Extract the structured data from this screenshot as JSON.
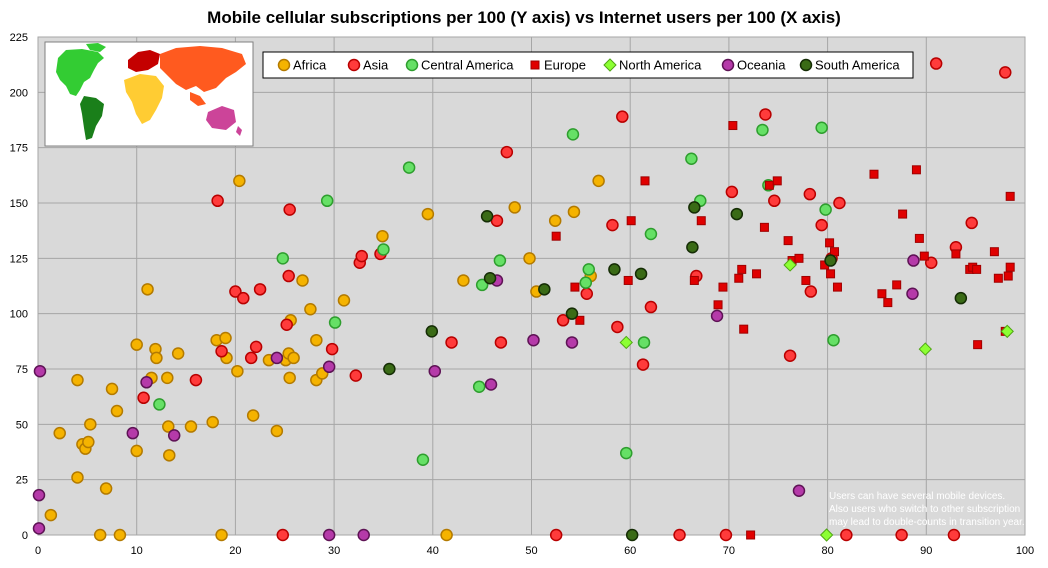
{
  "chart_data": {
    "type": "scatter",
    "title": "Mobile cellular subscriptions per 100 (Y axis) vs Internet users per 100 (X axis)",
    "xlabel": "",
    "ylabel": "",
    "xlim": [
      0,
      100
    ],
    "ylim": [
      0,
      225
    ],
    "x_ticks": [
      0,
      10,
      20,
      30,
      40,
      50,
      60,
      70,
      80,
      90,
      100
    ],
    "y_ticks": [
      0,
      25,
      50,
      75,
      100,
      125,
      150,
      175,
      200,
      225
    ],
    "grid": true,
    "legend_placement": "top",
    "note": [
      "Users can have several mobile devices.",
      "Also users who switch to other subscription",
      "may lead to double-counts in transition year."
    ],
    "series": [
      {
        "name": "Africa",
        "marker": "circle",
        "color": "#f5b300",
        "edge": "#b37a00",
        "points": [
          [
            1.3,
            9
          ],
          [
            2.2,
            46
          ],
          [
            4,
            26
          ],
          [
            4,
            70
          ],
          [
            4.5,
            41
          ],
          [
            4.8,
            39
          ],
          [
            5.1,
            42
          ],
          [
            5.3,
            50
          ],
          [
            6.3,
            0
          ],
          [
            6.9,
            21
          ],
          [
            7.5,
            66
          ],
          [
            8,
            56
          ],
          [
            8.3,
            0
          ],
          [
            10,
            38
          ],
          [
            10,
            86
          ],
          [
            11.1,
            111
          ],
          [
            11.5,
            71
          ],
          [
            11.9,
            84
          ],
          [
            12,
            80
          ],
          [
            13.1,
            71
          ],
          [
            13.2,
            49
          ],
          [
            13.3,
            36
          ],
          [
            14.2,
            82
          ],
          [
            15.5,
            49
          ],
          [
            17.7,
            51
          ],
          [
            18.1,
            88
          ],
          [
            18.6,
            0
          ],
          [
            19,
            89
          ],
          [
            19.1,
            80
          ],
          [
            20.2,
            74
          ],
          [
            20.4,
            160
          ],
          [
            21.8,
            54
          ],
          [
            23.4,
            79
          ],
          [
            24.2,
            47
          ],
          [
            25.1,
            79
          ],
          [
            25.4,
            82
          ],
          [
            25.5,
            71
          ],
          [
            25.6,
            97
          ],
          [
            25.9,
            80
          ],
          [
            26.8,
            115
          ],
          [
            27.6,
            102
          ],
          [
            28.2,
            88
          ],
          [
            28.2,
            70
          ],
          [
            28.8,
            73
          ],
          [
            31,
            106
          ],
          [
            34.9,
            135
          ],
          [
            39.5,
            145
          ],
          [
            41.4,
            0
          ],
          [
            43.1,
            115
          ],
          [
            48.3,
            148
          ],
          [
            49.8,
            125
          ],
          [
            50.5,
            110
          ],
          [
            52.4,
            142
          ],
          [
            54.3,
            146
          ],
          [
            56,
            117
          ],
          [
            56.8,
            160
          ]
        ]
      },
      {
        "name": "Asia",
        "marker": "circle",
        "color": "#ff3b3b",
        "edge": "#b80000",
        "points": [
          [
            10.7,
            62
          ],
          [
            16,
            70
          ],
          [
            18.2,
            151
          ],
          [
            18.6,
            83
          ],
          [
            20,
            110
          ],
          [
            20.8,
            107
          ],
          [
            21.6,
            80
          ],
          [
            22.1,
            85
          ],
          [
            22.5,
            111
          ],
          [
            24.8,
            0
          ],
          [
            25.2,
            95
          ],
          [
            25.4,
            117
          ],
          [
            25.5,
            147
          ],
          [
            29.8,
            84
          ],
          [
            32.2,
            72
          ],
          [
            32.6,
            123
          ],
          [
            32.8,
            126
          ],
          [
            34.7,
            127
          ],
          [
            41.9,
            87
          ],
          [
            46.5,
            142
          ],
          [
            46.9,
            87
          ],
          [
            47.5,
            173
          ],
          [
            52.5,
            0
          ],
          [
            53.2,
            97
          ],
          [
            55.6,
            109
          ],
          [
            58.2,
            140
          ],
          [
            58.7,
            94
          ],
          [
            59.2,
            189
          ],
          [
            61.3,
            77
          ],
          [
            62.1,
            103
          ],
          [
            65,
            0
          ],
          [
            66.7,
            117
          ],
          [
            69.7,
            0
          ],
          [
            70.3,
            155
          ],
          [
            73.7,
            190
          ],
          [
            74.6,
            151
          ],
          [
            76.2,
            81
          ],
          [
            78.2,
            154
          ],
          [
            78.3,
            110
          ],
          [
            79.4,
            140
          ],
          [
            80.4,
            125
          ],
          [
            81.2,
            150
          ],
          [
            81.9,
            0
          ],
          [
            87.5,
            0
          ],
          [
            90.5,
            123
          ],
          [
            91,
            213
          ],
          [
            92.8,
            0
          ],
          [
            93,
            130
          ],
          [
            94.6,
            141
          ],
          [
            98,
            209
          ]
        ]
      },
      {
        "name": "Central America",
        "marker": "circle",
        "color": "#66e066",
        "edge": "#2e9e2e",
        "points": [
          [
            12.3,
            59
          ],
          [
            24.8,
            125
          ],
          [
            29.3,
            151
          ],
          [
            30.1,
            96
          ],
          [
            35,
            129
          ],
          [
            37.6,
            166
          ],
          [
            39,
            34
          ],
          [
            44.7,
            67
          ],
          [
            45,
            113
          ],
          [
            46.8,
            124
          ],
          [
            54.2,
            181
          ],
          [
            55.5,
            114
          ],
          [
            55.8,
            120
          ],
          [
            59.6,
            37
          ],
          [
            61.4,
            87
          ],
          [
            62.1,
            136
          ],
          [
            66.2,
            170
          ],
          [
            67.1,
            151
          ],
          [
            73.4,
            183
          ],
          [
            74,
            158
          ],
          [
            79.4,
            184
          ],
          [
            79.8,
            147
          ],
          [
            80.6,
            88
          ]
        ]
      },
      {
        "name": "Europe",
        "marker": "square",
        "color": "#e00000",
        "edge": "#a00000",
        "points": [
          [
            52.5,
            135
          ],
          [
            54.4,
            112
          ],
          [
            54.9,
            97
          ],
          [
            59.8,
            115
          ],
          [
            60.1,
            142
          ],
          [
            61.5,
            160
          ],
          [
            66.5,
            115
          ],
          [
            67.2,
            142
          ],
          [
            68.9,
            104
          ],
          [
            69.4,
            112
          ],
          [
            70.4,
            185
          ],
          [
            71,
            116
          ],
          [
            71.3,
            120
          ],
          [
            71.5,
            93
          ],
          [
            72.2,
            0
          ],
          [
            72.8,
            118
          ],
          [
            73.6,
            139
          ],
          [
            74.1,
            158
          ],
          [
            74.9,
            160
          ],
          [
            76,
            133
          ],
          [
            76.4,
            124
          ],
          [
            77.1,
            125
          ],
          [
            77.8,
            115
          ],
          [
            79.7,
            122
          ],
          [
            80.2,
            132
          ],
          [
            80.3,
            118
          ],
          [
            80.7,
            128
          ],
          [
            81,
            112
          ],
          [
            84.7,
            163
          ],
          [
            85.5,
            109
          ],
          [
            86.1,
            105
          ],
          [
            87,
            113
          ],
          [
            87.6,
            145
          ],
          [
            89,
            165
          ],
          [
            89.3,
            134
          ],
          [
            89.8,
            126
          ],
          [
            93,
            127
          ],
          [
            94.4,
            120
          ],
          [
            94.7,
            121
          ],
          [
            95.2,
            86
          ],
          [
            95.1,
            120
          ],
          [
            96.9,
            128
          ],
          [
            97.3,
            116
          ],
          [
            98,
            92
          ],
          [
            98.3,
            117
          ],
          [
            98.5,
            153
          ],
          [
            98.5,
            121
          ]
        ]
      },
      {
        "name": "North America",
        "marker": "diamond",
        "color": "#8cff33",
        "edge": "#4fa514",
        "points": [
          [
            59.6,
            87
          ],
          [
            76.2,
            122
          ],
          [
            79.9,
            0
          ],
          [
            89.9,
            84
          ],
          [
            98.2,
            92
          ]
        ]
      },
      {
        "name": "Oceania",
        "marker": "circle",
        "color": "#b53aa9",
        "edge": "#5e1355",
        "points": [
          [
            0.2,
            74
          ],
          [
            0.1,
            18
          ],
          [
            0.1,
            3
          ],
          [
            9.6,
            46
          ],
          [
            11,
            69
          ],
          [
            13.8,
            45
          ],
          [
            24.2,
            80
          ],
          [
            29.5,
            76
          ],
          [
            29.5,
            0
          ],
          [
            33,
            0
          ],
          [
            40.2,
            74
          ],
          [
            45.9,
            68
          ],
          [
            46.5,
            115
          ],
          [
            50.2,
            88
          ],
          [
            54.1,
            87
          ],
          [
            68.8,
            99
          ],
          [
            77.1,
            20
          ],
          [
            88.7,
            124
          ],
          [
            88.6,
            109
          ]
        ]
      },
      {
        "name": "South America",
        "marker": "circle",
        "color": "#3a6b16",
        "edge": "#152d05",
        "points": [
          [
            35.6,
            75
          ],
          [
            39.9,
            92
          ],
          [
            45.5,
            144
          ],
          [
            45.8,
            116
          ],
          [
            51.3,
            111
          ],
          [
            54.1,
            100
          ],
          [
            58.4,
            120
          ],
          [
            60.2,
            0
          ],
          [
            61.1,
            118
          ],
          [
            66.3,
            130
          ],
          [
            66.5,
            148
          ],
          [
            70.8,
            145
          ],
          [
            80.3,
            124
          ],
          [
            93.5,
            107
          ]
        ]
      }
    ]
  }
}
